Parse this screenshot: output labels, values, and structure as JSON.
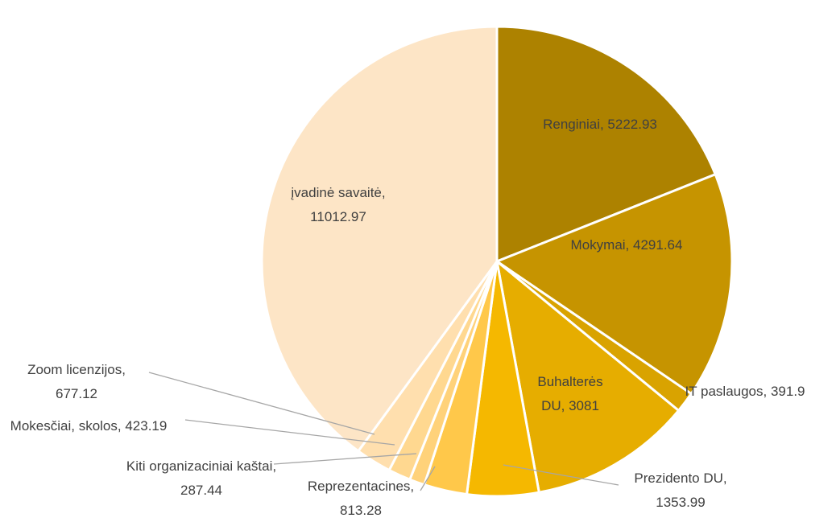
{
  "chart_data": {
    "type": "pie",
    "values": [
      5222.93,
      4291.64,
      391.9,
      3081,
      1353.99,
      813.28,
      287.44,
      423.19,
      677.12,
      11012.97
    ],
    "value_labels": [
      "Renginiai, 5222.93",
      "Mokymai, 4291.64",
      "IT paslaugos, 391.9",
      "Buhalterės DU, 3081",
      "Prezidento DU, 1353.99",
      "Reprezentacines, 813.28",
      "Kiti organizaciniai kaštai, 287.44",
      "Mokesčiai, skolos, 423.19",
      "Zoom licenzijos, 677.12",
      "įvadinė savaitė, 11012.97"
    ],
    "colors": [
      "#ad8200",
      "#c69400",
      "#d9a300",
      "#e6ad00",
      "#f5b800",
      "#ffc84a",
      "#ffd27a",
      "#ffd890",
      "#ffdfae",
      "#fde5c6"
    ]
  }
}
